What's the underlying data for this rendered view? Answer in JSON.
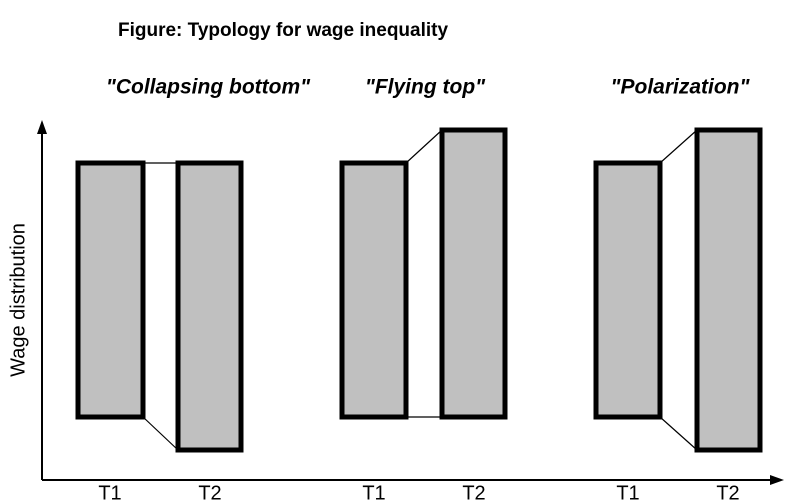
{
  "header": {
    "title": "Figure: Typology for wage inequality"
  },
  "axes": {
    "y_label": "Wage distribution"
  },
  "groups": [
    {
      "title": "\"Collapsing bottom\"",
      "periods": [
        "T1",
        "T2"
      ]
    },
    {
      "title": "\"Flying top\"",
      "periods": [
        "T1",
        "T2"
      ]
    },
    {
      "title": "\"Polarization\"",
      "periods": [
        "T1",
        "T2"
      ]
    }
  ]
}
